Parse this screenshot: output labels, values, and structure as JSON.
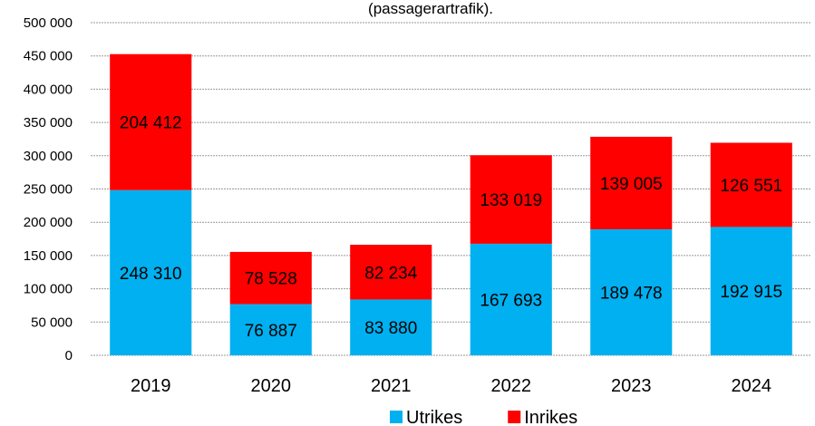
{
  "chart_data": {
    "type": "stacked_bar",
    "title": "(passagerartrafik).",
    "categories": [
      "2019",
      "2020",
      "2021",
      "2022",
      "2023",
      "2024"
    ],
    "series": [
      {
        "name": "Utrikes",
        "color": "#00b0f0",
        "values": [
          248310,
          76887,
          83880,
          167693,
          189478,
          192915
        ],
        "value_labels": [
          "248 310",
          "76 887",
          "83 880",
          "167 693",
          "189 478",
          "192 915"
        ]
      },
      {
        "name": "Inrikes",
        "color": "#ff0000",
        "values": [
          204412,
          78528,
          82234,
          133019,
          139005,
          126551
        ],
        "value_labels": [
          "204 412",
          "78 528",
          "82 234",
          "133 019",
          "139 005",
          "126 551"
        ]
      }
    ],
    "ylim": [
      0,
      500000
    ],
    "yticks": [
      0,
      {
        "value": 50000,
        "label": "50 000"
      },
      {
        "value": 100000,
        "label": "100 000"
      },
      {
        "value": 150000,
        "label": "150 000"
      },
      {
        "value": 200000,
        "label": "200 000"
      },
      {
        "value": 250000,
        "label": "250 000"
      },
      {
        "value": 300000,
        "label": "300 000"
      },
      {
        "value": 350000,
        "label": "350 000"
      },
      {
        "value": 400000,
        "label": "400 000"
      },
      {
        "value": 450000,
        "label": "450 000"
      },
      {
        "value": 500000,
        "label": "500 000"
      }
    ],
    "grid": true,
    "legend": "bottom"
  }
}
